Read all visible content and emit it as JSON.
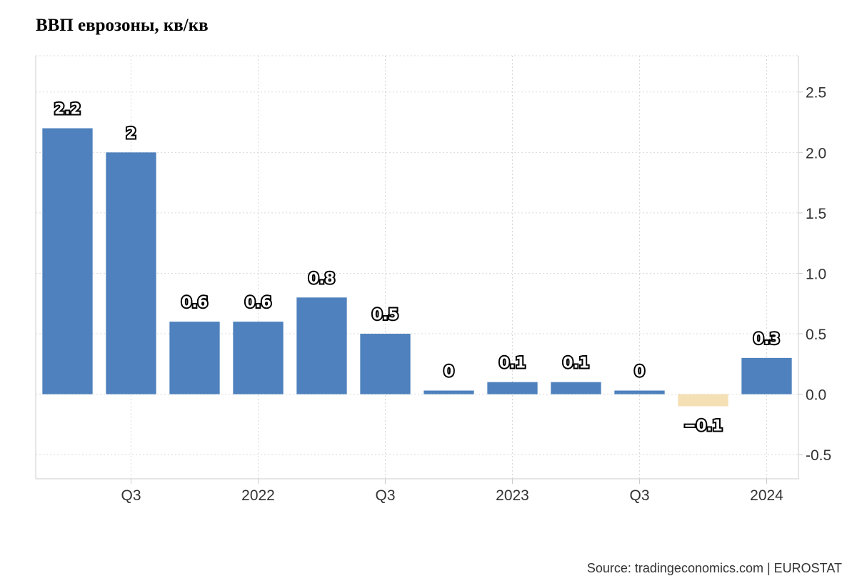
{
  "title": "ВВП еврозоны, кв/кв",
  "source": "Source: tradingeconomics.com | EUROSTAT",
  "colors": {
    "positive": "#4e81bd",
    "negative": "#f5dfb4",
    "grid": "#d9d9d9",
    "axis": "#cccccc"
  },
  "chart_data": {
    "type": "bar",
    "title": "ВВП еврозоны, кв/кв",
    "xlabel": "",
    "ylabel": "",
    "categories": [
      "2021 Q2",
      "2021 Q3",
      "2021 Q4",
      "2022 Q1",
      "2022 Q2",
      "2022 Q3",
      "2022 Q4",
      "2023 Q1",
      "2023 Q2",
      "2023 Q3",
      "2023 Q4",
      "2024 Q1"
    ],
    "values": [
      2.2,
      2.0,
      0.6,
      0.6,
      0.8,
      0.5,
      0.03,
      0.1,
      0.1,
      0.03,
      -0.1,
      0.3
    ],
    "data_labels": [
      "2.2",
      "2",
      "0.6",
      "0.6",
      "0.8",
      "0.5",
      "0",
      "0.1",
      "0.1",
      "0",
      "−0.1",
      "0.3"
    ],
    "x_tick_labels": [
      {
        "category": "2021 Q3",
        "label": "Q3"
      },
      {
        "category": "2022 Q1",
        "label": "2022"
      },
      {
        "category": "2022 Q3",
        "label": "Q3"
      },
      {
        "category": "2023 Q1",
        "label": "2023"
      },
      {
        "category": "2023 Q3",
        "label": "Q3"
      },
      {
        "category": "2024 Q1",
        "label": "2024"
      }
    ],
    "y_ticks": [
      2.5,
      2.0,
      1.5,
      1.0,
      0.5,
      0.0,
      -0.5
    ],
    "y_tick_labels": [
      "2.5",
      "2.0",
      "1.5",
      "1.0",
      "0.5",
      "0.0",
      "-0.5"
    ],
    "ylim": [
      -0.7,
      2.8
    ],
    "y_axis_side": "right",
    "grid": true,
    "legend": "none"
  }
}
